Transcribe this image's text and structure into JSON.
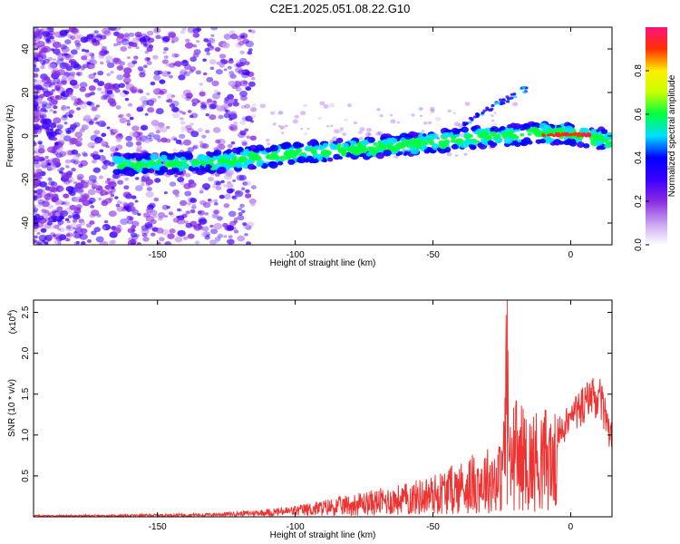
{
  "title": "C2E1.2025.051.08.22.G10",
  "chart_data": [
    {
      "type": "heatmap",
      "name": "spectrogram",
      "xlabel": "Height of straight line (km)",
      "ylabel": "Frequency (Hz)",
      "xlim": [
        -195,
        15
      ],
      "ylim": [
        -50,
        50
      ],
      "xticks": [
        -150,
        -100,
        -50,
        0
      ],
      "yticks": [
        -40,
        -20,
        0,
        20,
        40
      ],
      "trend": {
        "x": [
          -165,
          -130,
          -100,
          -60,
          -30,
          -10,
          0,
          14
        ],
        "freq": [
          -13,
          -12,
          -8,
          -4,
          0,
          1,
          1,
          -2
        ]
      },
      "colorbar": {
        "label": "Normalized spectral amplitude",
        "range": [
          0,
          1
        ],
        "ticks": [
          0.0,
          0.2,
          0.4,
          0.6,
          0.8
        ],
        "colors": [
          "#ffffff",
          "#c8a0f0",
          "#8a2be2",
          "#3a00ff",
          "#0000ff",
          "#00e0ff",
          "#00ff40",
          "#c8ff00",
          "#ffee00",
          "#ff3000",
          "#ff1080"
        ]
      }
    },
    {
      "type": "line",
      "name": "snr",
      "xlabel": "Height of straight line (km)",
      "ylabel": "SNR (10 * v/v)",
      "yscale_label": "(x10",
      "yscale_exp": "4",
      "xlim": [
        -195,
        15
      ],
      "ylim": [
        0,
        2.65
      ],
      "xticks": [
        -150,
        -100,
        -50,
        0
      ],
      "yticks": [
        0.5,
        1.0,
        1.5,
        2.0,
        2.5
      ],
      "color": "#ee3333",
      "x": [
        -195,
        -170,
        -150,
        -130,
        -115,
        -100,
        -90,
        -80,
        -70,
        -60,
        -50,
        -40,
        -30,
        -25,
        -23,
        -22,
        -20,
        -15,
        -10,
        -5,
        0,
        5,
        10,
        13,
        14
      ],
      "y": [
        0.02,
        0.02,
        0.03,
        0.04,
        0.07,
        0.12,
        0.18,
        0.24,
        0.3,
        0.36,
        0.45,
        0.6,
        0.75,
        0.8,
        2.65,
        1.0,
        1.3,
        1.1,
        1.2,
        1.1,
        1.3,
        1.5,
        1.6,
        1.3,
        1.1
      ]
    }
  ]
}
